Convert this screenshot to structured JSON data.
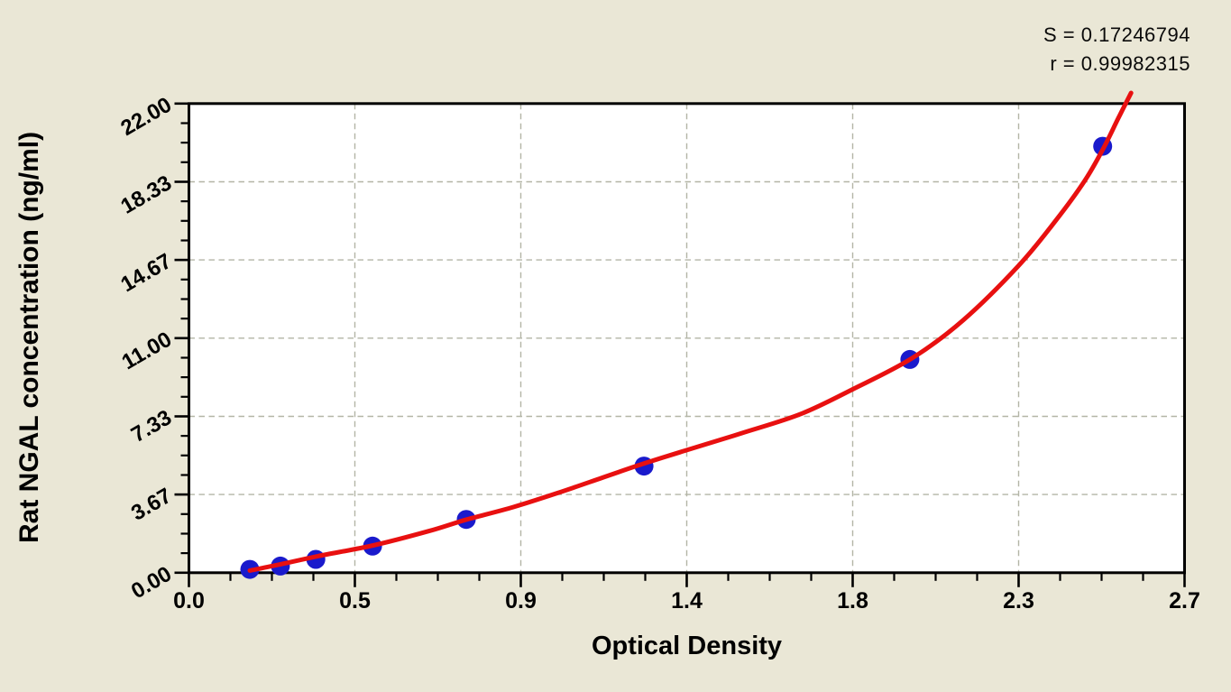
{
  "stats": {
    "s_line": "S = 0.17246794",
    "r_line": "r = 0.99982315"
  },
  "chart_data": {
    "type": "scatter",
    "title": "",
    "xlabel": "Optical Density",
    "ylabel": "Rat NGAL concentration (ng/ml)",
    "xlim": [
      0,
      2.7
    ],
    "ylim": [
      0,
      22
    ],
    "grid": {
      "show": true,
      "style": "dashed",
      "on_major_ticks": true
    },
    "x_ticks": {
      "values": [
        0,
        0.45,
        0.9,
        1.35,
        1.8,
        2.25,
        2.7
      ],
      "labels": [
        "0.0",
        "0.5",
        "0.9",
        "1.4",
        "1.8",
        "2.3",
        "2.7"
      ],
      "minor_divisions": 4
    },
    "y_ticks": {
      "values": [
        0,
        3.6667,
        7.3333,
        11,
        14.6667,
        18.3333,
        22
      ],
      "labels": [
        "0.00",
        "3.67",
        "7.33",
        "11.00",
        "14.67",
        "18.33",
        "22.00"
      ],
      "minor_divisions": 4,
      "label_rotation_deg": -30
    },
    "fit_stats": {
      "S": "0.17246794",
      "r": "0.99982315"
    },
    "series": [
      {
        "name": "standard-points",
        "type": "scatter",
        "color": "#1A1ACC",
        "marker_radius_px": 10.5,
        "points": [
          {
            "od": 0.165,
            "conc": 0.156
          },
          {
            "od": 0.248,
            "conc": 0.313
          },
          {
            "od": 0.344,
            "conc": 0.625
          },
          {
            "od": 0.498,
            "conc": 1.25
          },
          {
            "od": 0.752,
            "conc": 2.5
          },
          {
            "od": 1.234,
            "conc": 5.0
          },
          {
            "od": 1.955,
            "conc": 10.0
          },
          {
            "od": 2.478,
            "conc": 20.0
          }
        ]
      },
      {
        "name": "fitted-curve",
        "type": "line",
        "color": "#E81010",
        "stroke_width_px": 5,
        "points": [
          [
            0.165,
            0.1
          ],
          [
            0.25,
            0.4
          ],
          [
            0.35,
            0.78
          ],
          [
            0.5,
            1.28
          ],
          [
            0.65,
            1.95
          ],
          [
            0.75,
            2.48
          ],
          [
            0.88,
            3.08
          ],
          [
            1.0,
            3.74
          ],
          [
            1.12,
            4.45
          ],
          [
            1.23,
            5.1
          ],
          [
            1.35,
            5.75
          ],
          [
            1.5,
            6.55
          ],
          [
            1.66,
            7.45
          ],
          [
            1.8,
            8.6
          ],
          [
            1.96,
            10.05
          ],
          [
            2.1,
            11.85
          ],
          [
            2.25,
            14.4
          ],
          [
            2.35,
            16.5
          ],
          [
            2.43,
            18.4
          ],
          [
            2.48,
            19.9
          ],
          [
            2.52,
            21.3
          ],
          [
            2.555,
            22.5
          ]
        ]
      }
    ],
    "colors": {
      "figure_background": "#EAE7D6",
      "plot_background": "#FFFFFF",
      "axis": "#000000",
      "tick_label": "#000000",
      "grid": "#B3B5A6",
      "point": "#1A1ACC",
      "curve": "#E81010"
    }
  }
}
